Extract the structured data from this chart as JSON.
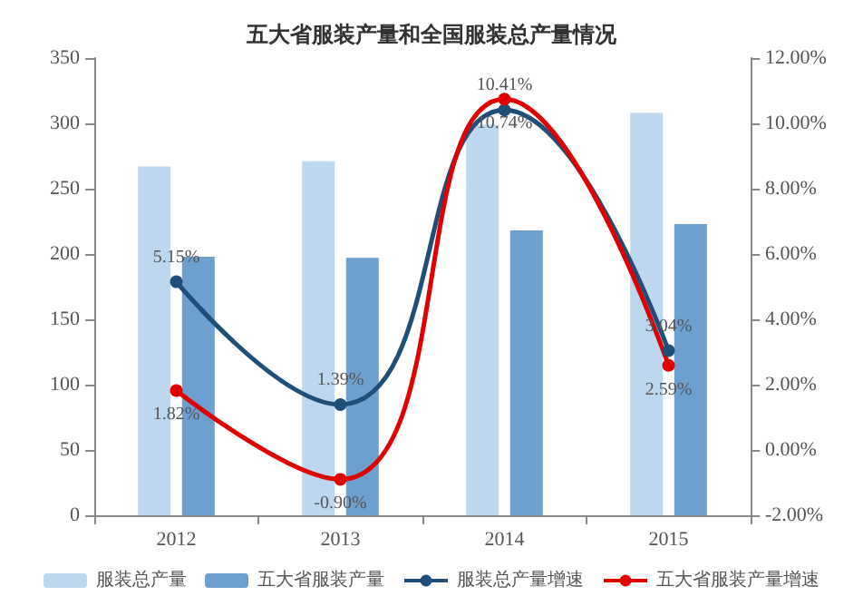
{
  "chart_data": {
    "type": "bar",
    "title": "五大省服装产量和全国服装总产量情况",
    "categories": [
      "2012",
      "2013",
      "2014",
      "2015"
    ],
    "series": [
      {
        "name": "服装总产量",
        "color": "#bdd7ee",
        "values": [
          267,
          271,
          299,
          308
        ]
      },
      {
        "name": "五大省服装产量",
        "color": "#6d9fcf",
        "values": [
          198,
          197,
          218,
          223
        ]
      },
      {
        "name": "服装总产量增速",
        "type": "line",
        "axis": "y2",
        "color": "#1f4e79",
        "values": [
          5.15,
          1.39,
          10.41,
          3.04
        ],
        "value_labels": [
          "5.15%",
          "1.39%",
          "10.41%",
          "3.04%"
        ]
      },
      {
        "name": "五大省服装产量增速",
        "type": "line",
        "axis": "y2",
        "color": "#e00000",
        "values": [
          1.82,
          -0.9,
          10.74,
          2.59
        ],
        "value_labels": [
          "1.82%",
          "-0.90%",
          "10.74%",
          "2.59%"
        ]
      }
    ],
    "ylim": [
      0,
      350
    ],
    "yticks": [
      0,
      50,
      100,
      150,
      200,
      250,
      300,
      350
    ],
    "y2lim": [
      -2,
      12
    ],
    "y2ticks": [
      {
        "value": -2,
        "label": "-2.00%"
      },
      {
        "value": 0,
        "label": "0.00%"
      },
      {
        "value": 2,
        "label": "2.00%"
      },
      {
        "value": 4,
        "label": "4.00%"
      },
      {
        "value": 6,
        "label": "6.00%"
      },
      {
        "value": 8,
        "label": "8.00%"
      },
      {
        "value": 10,
        "label": "10.00%"
      },
      {
        "value": 12,
        "label": "12.00%"
      }
    ],
    "grid": false,
    "legend": "bottom",
    "marker": "circle",
    "line_style": "solid"
  }
}
